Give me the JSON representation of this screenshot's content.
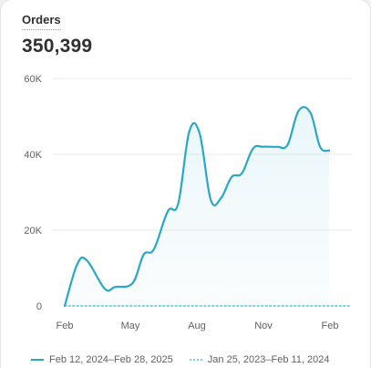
{
  "metric": {
    "title": "Orders",
    "value": "350,399"
  },
  "chart_data": {
    "type": "line",
    "ylim": [
      0,
      60000
    ],
    "y_ticks": [
      0,
      20000,
      40000,
      60000
    ],
    "y_tick_labels": [
      "0",
      "20K",
      "40K",
      "60K"
    ],
    "x_ticks": [
      "Feb",
      "May",
      "Aug",
      "Nov",
      "Feb"
    ],
    "grid": true,
    "legend_position": "bottom",
    "series": [
      {
        "name": "Feb 12, 2024–Feb 28, 2025",
        "color": "#29a8c9",
        "style": "solid",
        "x": [
          "2024-02-12",
          "2024-03-01",
          "2024-03-15",
          "2024-04-10",
          "2024-04-25",
          "2024-05-20",
          "2024-06-05",
          "2024-06-20",
          "2024-07-10",
          "2024-07-25",
          "2024-08-10",
          "2024-08-25",
          "2024-09-10",
          "2024-09-25",
          "2024-10-10",
          "2024-10-25",
          "2024-11-10",
          "2024-11-25",
          "2024-12-15",
          "2024-12-30",
          "2025-01-15",
          "2025-02-01",
          "2025-02-15",
          "2025-02-28"
        ],
        "values": [
          0,
          11000,
          12000,
          4500,
          5000,
          6000,
          13500,
          15000,
          25000,
          27000,
          46000,
          45500,
          28000,
          28500,
          34000,
          35000,
          41500,
          42000,
          42000,
          42500,
          51500,
          51000,
          42000,
          41000
        ]
      },
      {
        "name": "Jan 25, 2023–Feb 11, 2024",
        "color": "#7fd1e6",
        "style": "dotted",
        "x": [
          "2024-02-12",
          "2025-02-28"
        ],
        "values": [
          0,
          0
        ]
      }
    ]
  }
}
